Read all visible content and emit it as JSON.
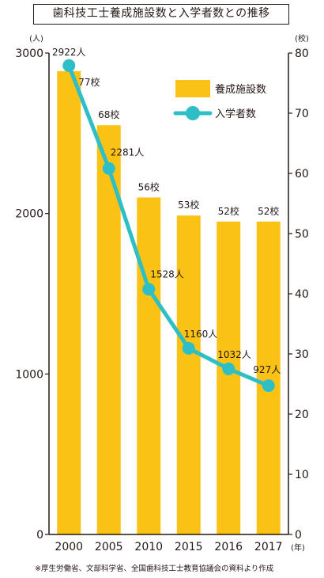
{
  "chart_data": {
    "type": "bar",
    "title": "歯科技工士養成施設数と入学者数との推移",
    "left_unit": "(人)",
    "right_unit": "(校)",
    "x_unit": "(年)",
    "categories": [
      "2000",
      "2005",
      "2010",
      "2015",
      "2016",
      "2017"
    ],
    "ylim_left": [
      0,
      3000
    ],
    "ylim_right": [
      0,
      80
    ],
    "left_ticks": [
      0,
      1000,
      2000,
      3000
    ],
    "right_ticks": [
      0,
      10,
      20,
      30,
      40,
      50,
      60,
      70,
      80
    ],
    "series": [
      {
        "name": "養成施設数",
        "type": "bar",
        "axis": "right",
        "values": [
          77,
          68,
          56,
          53,
          52,
          52
        ],
        "labels": [
          "77校",
          "68校",
          "56校",
          "53校",
          "52校",
          "52校"
        ]
      },
      {
        "name": "入学者数",
        "type": "line",
        "axis": "left",
        "values": [
          2922,
          2281,
          1528,
          1160,
          1032,
          927
        ],
        "labels": [
          "2922人",
          "2281人",
          "1528人",
          "1160人",
          "1032人",
          "927人"
        ]
      }
    ],
    "legend_position": "top-right",
    "grid": false,
    "colors": {
      "bar": "#fbc216",
      "line": "#2ebfc6",
      "axis": "#231815"
    },
    "source": "※厚生労働省、文部科学省、全国歯科技工士教育協議会の資料より作成"
  }
}
